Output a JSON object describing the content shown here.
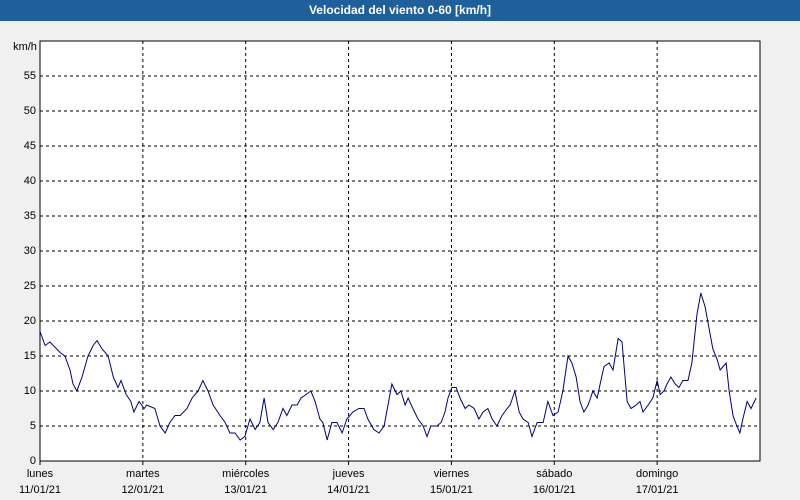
{
  "chart_data": {
    "type": "line",
    "title": "Velocidad del viento 0-60 [km/h]",
    "y_label": "km/h",
    "xlim": [
      0,
      168
    ],
    "ylim": [
      0,
      60
    ],
    "yticks": [
      0,
      5,
      10,
      15,
      20,
      25,
      30,
      35,
      40,
      45,
      50,
      55
    ],
    "xticks": [
      {
        "value": 0,
        "label": [
          "lunes",
          "11/01/21"
        ]
      },
      {
        "value": 24,
        "label": [
          "martes",
          "12/01/21"
        ]
      },
      {
        "value": 48,
        "label": [
          "miércoles",
          "13/01/21"
        ]
      },
      {
        "value": 72,
        "label": [
          "jueves",
          "14/01/21"
        ]
      },
      {
        "value": 96,
        "label": [
          "viernes",
          "15/01/21"
        ]
      },
      {
        "value": 120,
        "label": [
          "sábado",
          "16/01/21"
        ]
      },
      {
        "value": 144,
        "label": [
          "domingo",
          "17/01/21"
        ]
      }
    ],
    "grid": true,
    "color": "#000080",
    "x": [
      0,
      1.2,
      2.3,
      4.7,
      5.8,
      7,
      7.7,
      8.6,
      9.8,
      11.2,
      12.4,
      13.3,
      14.5,
      15.9,
      17.1,
      18.2,
      18.9,
      20.1,
      21.2,
      21.9,
      23.1,
      24.3,
      24.9,
      26.8,
      28,
      29.2,
      30.3,
      31.5,
      32.7,
      34.3,
      35.5,
      36.9,
      38,
      39.2,
      40.4,
      42,
      43.2,
      44.3,
      45.5,
      46.7,
      47.8,
      49,
      50.2,
      51.3,
      52.3,
      53.2,
      54.4,
      55.5,
      56.7,
      57.6,
      58.8,
      60,
      60.9,
      62.1,
      63.2,
      64.2,
      65.3,
      66,
      67,
      68.1,
      69.3,
      70.5,
      71.6,
      73,
      74.4,
      75.6,
      76.5,
      77.9,
      79.1,
      80.3,
      81.2,
      82.1,
      83.3,
      84.2,
      85.2,
      85.9,
      87,
      88.2,
      89.4,
      90.3,
      91.2,
      92.6,
      93.6,
      94.5,
      95.2,
      96.1,
      97.1,
      98,
      99.2,
      100.1,
      101.3,
      102.4,
      103.4,
      104.5,
      105.5,
      106.6,
      107.8,
      109,
      109.7,
      110.8,
      111.8,
      112.7,
      113.9,
      114.8,
      116,
      117.4,
      118.5,
      119.7,
      120.9,
      122,
      123.2,
      124.1,
      125.1,
      126,
      126.9,
      127.9,
      129,
      130,
      130.7,
      131.6,
      132.8,
      133.7,
      134.9,
      135.8,
      137,
      137.9,
      139.1,
      140,
      140.7,
      141.9,
      143,
      144,
      144.7,
      145.6,
      146.3,
      147.2,
      148.2,
      149.1,
      150,
      151.2,
      152.1,
      153.3,
      154.2,
      155.2,
      156.1,
      157,
      158,
      158.7,
      159.4,
      160.1,
      160.8,
      161.7,
      162.6,
      163.3,
      164,
      165,
      165.9,
      167.1
    ],
    "values": [
      18.5,
      16.5,
      17,
      15.5,
      15,
      13,
      11,
      10,
      12,
      15,
      16.5,
      17.2,
      16,
      15,
      12,
      10.5,
      11.5,
      9.5,
      8.5,
      7,
      8.5,
      7.5,
      8,
      7.5,
      5,
      4,
      5.5,
      6.5,
      6.5,
      7.5,
      9,
      10,
      11.5,
      10,
      8,
      6.5,
      5.5,
      4,
      4,
      3,
      3.5,
      6,
      4.5,
      5.5,
      9,
      5.5,
      4.5,
      5.5,
      7.5,
      6.5,
      8,
      8,
      9,
      9.5,
      10,
      8.5,
      6,
      5.5,
      3,
      5.5,
      5.5,
      4,
      6,
      7,
      7.5,
      7.5,
      6,
      4.5,
      4,
      5,
      8,
      11,
      9.5,
      10,
      8,
      9,
      7.5,
      6,
      5,
      3.5,
      5,
      5,
      5.5,
      7,
      9,
      10.5,
      10.5,
      9,
      7.5,
      8,
      7.5,
      6,
      7,
      7.5,
      6,
      5,
      6.5,
      7.5,
      8,
      10,
      7,
      6,
      5.5,
      3.5,
      5.5,
      5.5,
      8.5,
      6.5,
      7,
      10,
      15,
      14,
      12,
      8.5,
      7,
      8,
      10,
      9,
      11,
      13.5,
      14,
      13,
      17.5,
      17,
      8.5,
      7.5,
      8,
      8.5,
      7,
      8,
      9,
      11.5,
      9.5,
      10,
      11,
      12,
      11,
      10.5,
      11.5,
      11.5,
      14,
      21,
      24,
      22,
      19,
      16,
      14.5,
      13,
      13.5,
      14,
      10,
      6.5,
      5,
      4,
      6,
      8.5,
      7.5,
      9
    ]
  }
}
